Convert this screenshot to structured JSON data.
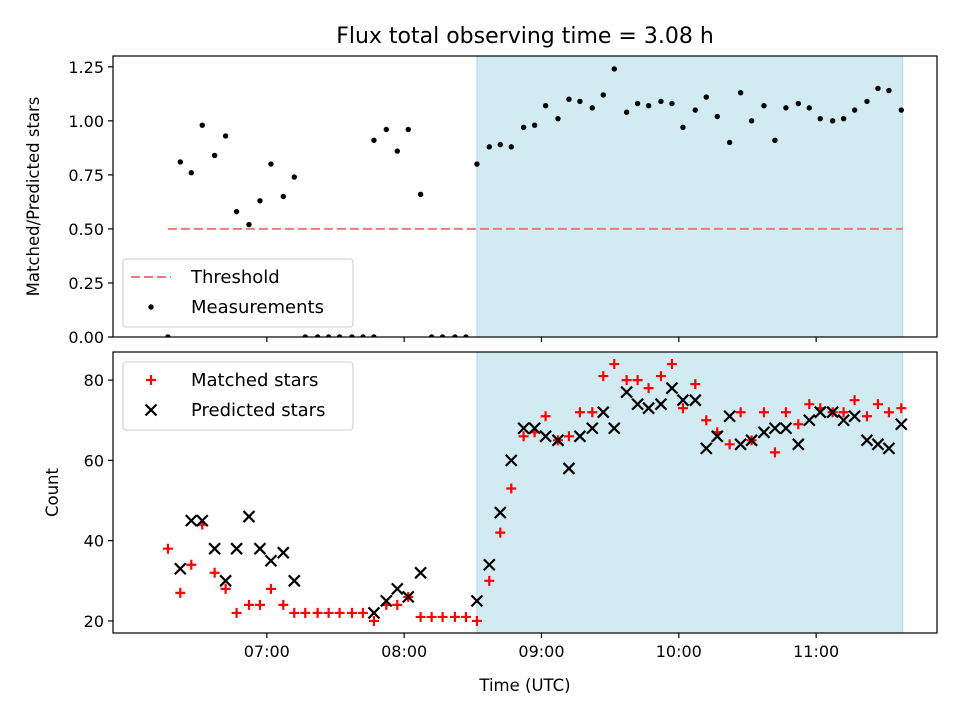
{
  "chart_data": {
    "title": "Flux total observing time = 3.08 h",
    "xlabel": "Time (UTC)",
    "x_tick_labels": [
      "07:00",
      "08:00",
      "09:00",
      "10:00",
      "11:00"
    ],
    "x_ticks_hours": [
      7,
      8,
      9,
      10,
      11
    ],
    "xlim_hours": [
      5.88,
      11.88
    ],
    "shaded_region_hours": [
      8.53,
      11.63
    ],
    "shade_color": "#add8e6",
    "panels": [
      {
        "type": "scatter",
        "ylabel": "Matched/Predicted stars",
        "ylim": [
          0,
          1.3
        ],
        "y_ticks": [
          0,
          0.25,
          0.5,
          0.75,
          1.0,
          1.25
        ],
        "y_tick_labels": [
          "0.00",
          "0.25",
          "0.50",
          "0.75",
          "1.00",
          "1.25"
        ],
        "threshold": {
          "name": "Threshold",
          "value": 0.5,
          "x_range_hours": [
            6.28,
            11.63
          ],
          "color": "#f07878"
        },
        "legend": {
          "position": "lower left",
          "entries": [
            "Threshold",
            "Measurements"
          ]
        },
        "series": [
          {
            "name": "Measurements",
            "marker": "dot",
            "color": "#000000",
            "points": [
              [
                6.28,
                0.0
              ],
              [
                6.37,
                0.81
              ],
              [
                6.45,
                0.76
              ],
              [
                6.53,
                0.98
              ],
              [
                6.62,
                0.84
              ],
              [
                6.7,
                0.93
              ],
              [
                6.78,
                0.58
              ],
              [
                6.87,
                0.52
              ],
              [
                6.95,
                0.63
              ],
              [
                7.03,
                0.8
              ],
              [
                7.12,
                0.65
              ],
              [
                7.2,
                0.74
              ],
              [
                7.28,
                0.0
              ],
              [
                7.37,
                0.0
              ],
              [
                7.45,
                0.0
              ],
              [
                7.53,
                0.0
              ],
              [
                7.62,
                0.0
              ],
              [
                7.7,
                0.0
              ],
              [
                7.78,
                0.0
              ],
              [
                7.78,
                0.91
              ],
              [
                7.87,
                0.96
              ],
              [
                7.95,
                0.86
              ],
              [
                8.03,
                0.96
              ],
              [
                8.12,
                0.66
              ],
              [
                8.2,
                0.0
              ],
              [
                8.28,
                0.0
              ],
              [
                8.37,
                0.0
              ],
              [
                8.45,
                0.0
              ],
              [
                8.53,
                0.8
              ],
              [
                8.62,
                0.88
              ],
              [
                8.7,
                0.89
              ],
              [
                8.78,
                0.88
              ],
              [
                8.87,
                0.97
              ],
              [
                8.95,
                0.98
              ],
              [
                9.03,
                1.07
              ],
              [
                9.12,
                1.01
              ],
              [
                9.2,
                1.1
              ],
              [
                9.28,
                1.09
              ],
              [
                9.37,
                1.06
              ],
              [
                9.45,
                1.12
              ],
              [
                9.53,
                1.24
              ],
              [
                9.62,
                1.04
              ],
              [
                9.7,
                1.08
              ],
              [
                9.78,
                1.07
              ],
              [
                9.87,
                1.09
              ],
              [
                9.95,
                1.08
              ],
              [
                10.03,
                0.97
              ],
              [
                10.12,
                1.05
              ],
              [
                10.2,
                1.11
              ],
              [
                10.28,
                1.02
              ],
              [
                10.37,
                0.9
              ],
              [
                10.45,
                1.13
              ],
              [
                10.53,
                1.0
              ],
              [
                10.62,
                1.07
              ],
              [
                10.7,
                0.91
              ],
              [
                10.78,
                1.06
              ],
              [
                10.87,
                1.08
              ],
              [
                10.95,
                1.06
              ],
              [
                11.03,
                1.01
              ],
              [
                11.12,
                1.0
              ],
              [
                11.2,
                1.01
              ],
              [
                11.28,
                1.05
              ],
              [
                11.37,
                1.09
              ],
              [
                11.45,
                1.15
              ],
              [
                11.53,
                1.14
              ],
              [
                11.62,
                1.05
              ]
            ]
          }
        ]
      },
      {
        "type": "scatter",
        "ylabel": "Count",
        "ylim": [
          17,
          87
        ],
        "y_ticks": [
          20,
          40,
          60,
          80
        ],
        "y_tick_labels": [
          "20",
          "40",
          "60",
          "80"
        ],
        "legend": {
          "position": "upper left",
          "entries": [
            "Matched stars",
            "Predicted stars"
          ]
        },
        "series": [
          {
            "name": "Matched stars",
            "marker": "plus",
            "color": "#ff0000",
            "points": [
              [
                6.28,
                38
              ],
              [
                6.37,
                27
              ],
              [
                6.45,
                34
              ],
              [
                6.53,
                44
              ],
              [
                6.62,
                32
              ],
              [
                6.7,
                28
              ],
              [
                6.78,
                22
              ],
              [
                6.87,
                24
              ],
              [
                6.95,
                24
              ],
              [
                7.03,
                28
              ],
              [
                7.12,
                24
              ],
              [
                7.2,
                22
              ],
              [
                7.28,
                22
              ],
              [
                7.37,
                22
              ],
              [
                7.45,
                22
              ],
              [
                7.53,
                22
              ],
              [
                7.62,
                22
              ],
              [
                7.7,
                22
              ],
              [
                7.78,
                20
              ],
              [
                7.87,
                24
              ],
              [
                7.95,
                24
              ],
              [
                8.03,
                26
              ],
              [
                8.12,
                21
              ],
              [
                8.2,
                21
              ],
              [
                8.28,
                21
              ],
              [
                8.37,
                21
              ],
              [
                8.45,
                21
              ],
              [
                8.53,
                20
              ],
              [
                8.62,
                30
              ],
              [
                8.7,
                42
              ],
              [
                8.78,
                53
              ],
              [
                8.87,
                66
              ],
              [
                8.95,
                67
              ],
              [
                9.03,
                71
              ],
              [
                9.12,
                65
              ],
              [
                9.2,
                66
              ],
              [
                9.28,
                72
              ],
              [
                9.37,
                72
              ],
              [
                9.45,
                81
              ],
              [
                9.53,
                84
              ],
              [
                9.62,
                80
              ],
              [
                9.7,
                80
              ],
              [
                9.78,
                78
              ],
              [
                9.87,
                81
              ],
              [
                9.95,
                84
              ],
              [
                10.03,
                73
              ],
              [
                10.12,
                79
              ],
              [
                10.2,
                70
              ],
              [
                10.28,
                67
              ],
              [
                10.37,
                64
              ],
              [
                10.45,
                72
              ],
              [
                10.53,
                65
              ],
              [
                10.62,
                72
              ],
              [
                10.7,
                62
              ],
              [
                10.78,
                72
              ],
              [
                10.87,
                69
              ],
              [
                10.95,
                74
              ],
              [
                11.03,
                73
              ],
              [
                11.12,
                72
              ],
              [
                11.2,
                72
              ],
              [
                11.28,
                75
              ],
              [
                11.37,
                71
              ],
              [
                11.45,
                74
              ],
              [
                11.53,
                72
              ],
              [
                11.62,
                73
              ]
            ]
          },
          {
            "name": "Predicted stars",
            "marker": "x",
            "color": "#000000",
            "points": [
              [
                6.37,
                33
              ],
              [
                6.45,
                45
              ],
              [
                6.53,
                45
              ],
              [
                6.62,
                38
              ],
              [
                6.7,
                30
              ],
              [
                6.78,
                38
              ],
              [
                6.87,
                46
              ],
              [
                6.95,
                38
              ],
              [
                7.03,
                35
              ],
              [
                7.12,
                37
              ],
              [
                7.2,
                30
              ],
              [
                7.78,
                22
              ],
              [
                7.87,
                25
              ],
              [
                7.95,
                28
              ],
              [
                8.03,
                26
              ],
              [
                8.12,
                32
              ],
              [
                8.53,
                25
              ],
              [
                8.62,
                34
              ],
              [
                8.7,
                47
              ],
              [
                8.78,
                60
              ],
              [
                8.87,
                68
              ],
              [
                8.95,
                68
              ],
              [
                9.03,
                66
              ],
              [
                9.12,
                65
              ],
              [
                9.2,
                58
              ],
              [
                9.28,
                66
              ],
              [
                9.37,
                68
              ],
              [
                9.45,
                72
              ],
              [
                9.53,
                68
              ],
              [
                9.62,
                77
              ],
              [
                9.7,
                74
              ],
              [
                9.78,
                73
              ],
              [
                9.87,
                74
              ],
              [
                9.95,
                78
              ],
              [
                10.03,
                75
              ],
              [
                10.12,
                75
              ],
              [
                10.2,
                63
              ],
              [
                10.28,
                66
              ],
              [
                10.37,
                71
              ],
              [
                10.45,
                64
              ],
              [
                10.53,
                65
              ],
              [
                10.62,
                67
              ],
              [
                10.7,
                68
              ],
              [
                10.78,
                68
              ],
              [
                10.87,
                64
              ],
              [
                10.95,
                70
              ],
              [
                11.03,
                72
              ],
              [
                11.12,
                72
              ],
              [
                11.2,
                70
              ],
              [
                11.28,
                71
              ],
              [
                11.37,
                65
              ],
              [
                11.45,
                64
              ],
              [
                11.53,
                63
              ],
              [
                11.62,
                69
              ]
            ]
          }
        ]
      }
    ]
  }
}
